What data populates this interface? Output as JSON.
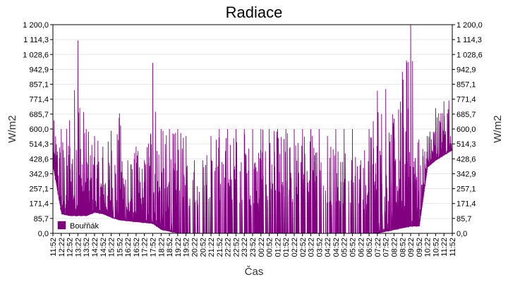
{
  "chart_data": {
    "type": "line",
    "title": "Radiace",
    "xlabel": "Čas",
    "ylabel": "W/m2",
    "ylabel_right": "W/m2",
    "ylim": [
      0,
      1200
    ],
    "y_ticks": [
      "0,0",
      "85,7",
      "171,4",
      "257,1",
      "342,9",
      "428,6",
      "514,3",
      "600,0",
      "685,7",
      "771,4",
      "857,1",
      "942,9",
      "1 028,6",
      "1 114,3",
      "1 200,0"
    ],
    "x_ticks": [
      "11:52",
      "12:22",
      "12:52",
      "13:22",
      "13:52",
      "14:22",
      "14:52",
      "15:22",
      "15:52",
      "16:22",
      "16:52",
      "17:22",
      "17:52",
      "18:22",
      "18:52",
      "19:22",
      "19:52",
      "20:22",
      "20:52",
      "21:22",
      "21:52",
      "22:22",
      "22:52",
      "23:22",
      "23:52",
      "00:22",
      "00:52",
      "01:22",
      "01:52",
      "02:22",
      "02:52",
      "03:22",
      "03:52",
      "04:22",
      "04:52",
      "05:22",
      "05:52",
      "06:22",
      "06:52",
      "07:22",
      "07:52",
      "08:22",
      "08:52",
      "09:22",
      "09:52",
      "10:22",
      "10:52",
      "11:22",
      "11:52"
    ],
    "grid": true,
    "legend_position": "bottom-left",
    "series": [
      {
        "name": "Bouřňák",
        "color": "#800080",
        "x": [
          "11:52",
          "12:22",
          "12:52",
          "13:22",
          "13:52",
          "14:22",
          "14:52",
          "15:22",
          "15:52",
          "16:22",
          "16:52",
          "17:22",
          "17:52",
          "18:22",
          "18:52",
          "19:22",
          "19:52",
          "20:22",
          "20:52",
          "21:22",
          "21:52",
          "22:22",
          "22:52",
          "23:22",
          "23:52",
          "00:22",
          "00:52",
          "01:22",
          "01:52",
          "02:22",
          "02:52",
          "03:22",
          "03:52",
          "04:22",
          "04:52",
          "05:22",
          "05:52",
          "06:22",
          "06:52",
          "07:22",
          "07:52",
          "08:22",
          "08:52",
          "09:22",
          "09:52",
          "10:22",
          "10:52",
          "11:22",
          "11:52"
        ],
        "low": [
          380,
          110,
          100,
          100,
          100,
          120,
          110,
          90,
          75,
          70,
          65,
          60,
          55,
          20,
          10,
          0,
          0,
          0,
          0,
          0,
          0,
          0,
          0,
          0,
          0,
          0,
          0,
          0,
          0,
          0,
          0,
          0,
          0,
          0,
          0,
          0,
          0,
          0,
          0,
          0,
          10,
          20,
          30,
          40,
          40,
          380,
          420,
          450,
          480
        ],
        "high": [
          660,
          600,
          650,
          1110,
          600,
          560,
          500,
          590,
          690,
          420,
          500,
          420,
          980,
          600,
          600,
          600,
          560,
          420,
          420,
          560,
          600,
          600,
          600,
          600,
          600,
          600,
          600,
          600,
          600,
          600,
          600,
          600,
          600,
          560,
          600,
          600,
          600,
          420,
          600,
          820,
          830,
          660,
          930,
          1200,
          540,
          560,
          720,
          760,
          860
        ]
      }
    ]
  }
}
